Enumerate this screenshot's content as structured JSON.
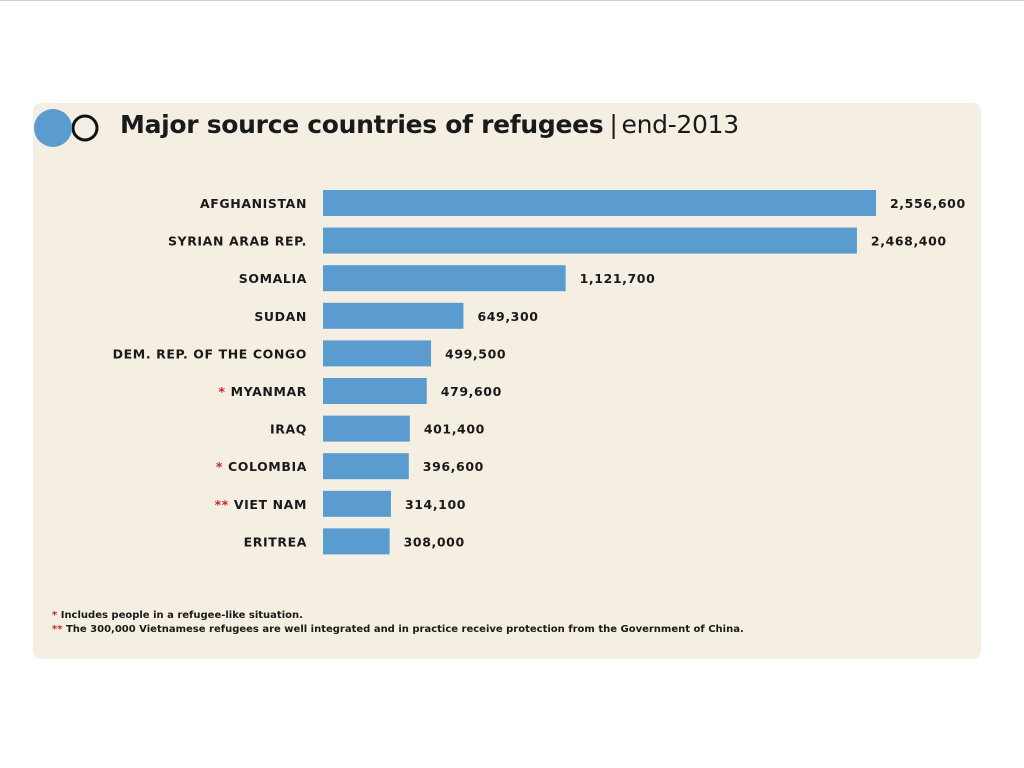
{
  "colors": {
    "bar": "#5a9bd0",
    "panel_bg": "#f4efe2",
    "text": "#1a1a1a",
    "asterisk": "#d2232a",
    "logo_fill": "#5a9bd0"
  },
  "header": {
    "logo_icon": "filled-and-outline-circles-icon"
  },
  "chart_data": {
    "type": "bar",
    "orientation": "horizontal",
    "title": "Major source countries of refugees",
    "subtitle": "end-2013",
    "xlabel": "",
    "ylabel": "",
    "grid": false,
    "xlim": [
      0,
      2556600
    ],
    "categories": [
      "AFGHANISTAN",
      "SYRIAN ARAB REP.",
      "SOMALIA",
      "SUDAN",
      "DEM. REP. OF THE CONGO",
      "MYANMAR",
      "IRAQ",
      "COLOMBIA",
      "VIET NAM",
      "ERITREA"
    ],
    "markers": [
      "",
      "",
      "",
      "",
      "",
      "*",
      "",
      "*",
      "**",
      ""
    ],
    "values": [
      2556600,
      2468400,
      1121700,
      649300,
      499500,
      479600,
      401400,
      396600,
      314100,
      308000
    ],
    "value_labels": [
      "2,556,600",
      "2,468,400",
      "1,121,700",
      "649,300",
      "499,500",
      "479,600",
      "401,400",
      "396,600",
      "314,100",
      "308,000"
    ],
    "annotations": [
      {
        "marker": "*",
        "text": "Includes people in a refugee-like situation."
      },
      {
        "marker": "**",
        "text": "The 300,000 Vietnamese refugees are well integrated and in practice receive protection from the Government of China."
      }
    ]
  }
}
